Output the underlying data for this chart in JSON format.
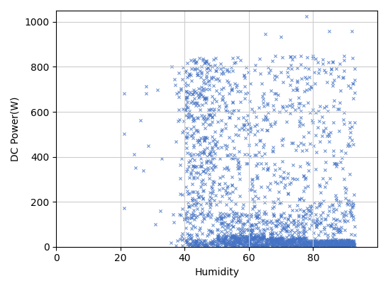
{
  "title": "",
  "xlabel": "Humidity",
  "ylabel": "DC Power(W)",
  "xlim": [
    0,
    100
  ],
  "ylim": [
    0,
    1050
  ],
  "xticks": [
    0,
    20,
    40,
    60,
    80
  ],
  "yticks": [
    0,
    200,
    400,
    600,
    800,
    1000
  ],
  "marker": "x",
  "marker_color": "#4472c4",
  "marker_size": 3,
  "marker_linewidth": 0.7,
  "alpha": 0.85,
  "grid": true,
  "grid_color": "#cccccc",
  "grid_linewidth": 0.8,
  "background_color": "#ffffff",
  "seed": 7,
  "n_sparse": 15,
  "n_mid": 60,
  "n_dense": 2200
}
